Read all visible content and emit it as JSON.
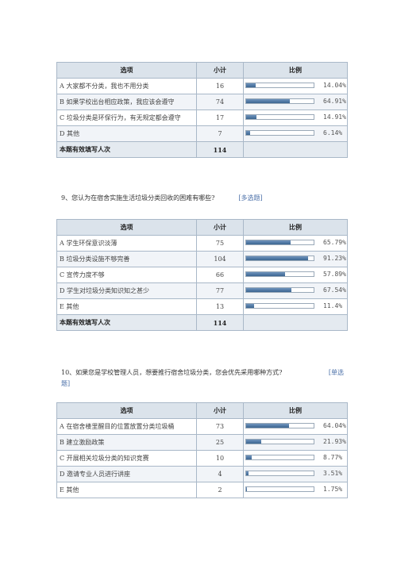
{
  "headers": {
    "option": "选项",
    "count": "小计",
    "ratio": "比例"
  },
  "total_label": "本题有效填写人次",
  "accent_color": "#3b6591",
  "tables": [
    {
      "rows": [
        {
          "option": "A 大家都不分类，我也不用分类",
          "count": "16",
          "percent": "14.04%",
          "fraction": 0.1404
        },
        {
          "option": "B 如果学校出台相应政策，我应该会遵守",
          "count": "74",
          "percent": "64.91%",
          "fraction": 0.6491
        },
        {
          "option": "C 垃圾分类是环保行为，有无规定都会遵守",
          "count": "17",
          "percent": "14.91%",
          "fraction": 0.1491
        },
        {
          "option": "D 其他",
          "count": "7",
          "percent": "6.14%",
          "fraction": 0.0614
        }
      ],
      "total": "114"
    },
    {
      "question": "9、您认为在宿舍实施生活垃圾分类回收的困难有哪些?",
      "tag": "[多选题]",
      "rows": [
        {
          "option": "A 学生环保意识淡薄",
          "count": "75",
          "percent": "65.79%",
          "fraction": 0.6579
        },
        {
          "option": "B 垃圾分类设施不够完善",
          "count": "104",
          "percent": "91.23%",
          "fraction": 0.9123
        },
        {
          "option": "C 宣传力度不够",
          "count": "66",
          "percent": "57.89%",
          "fraction": 0.5789
        },
        {
          "option": "D 学生对垃圾分类知识知之甚少",
          "count": "77",
          "percent": "67.54%",
          "fraction": 0.6754
        },
        {
          "option": "E 其他",
          "count": "13",
          "percent": "11.4%",
          "fraction": 0.114
        }
      ],
      "total": "114"
    },
    {
      "question_line1": "10、如果您是学校管理人员，想要推行宿舍垃圾分类，您会优先采用哪种方式?",
      "tag_line1": "[单选",
      "tag_line2": "题]",
      "rows": [
        {
          "option": "A 在宿舍楼里醒目的位置放置分类垃圾桶",
          "count": "73",
          "percent": "64.04%",
          "fraction": 0.6404
        },
        {
          "option": "B 建立激励政策",
          "count": "25",
          "percent": "21.93%",
          "fraction": 0.2193
        },
        {
          "option": "C 开展相关垃圾分类的知识竞赛",
          "count": "10",
          "percent": "8.77%",
          "fraction": 0.0877
        },
        {
          "option": "D 邀请专业人员进行讲座",
          "count": "4",
          "percent": "3.51%",
          "fraction": 0.0351
        },
        {
          "option": "E 其他",
          "count": "2",
          "percent": "1.75%",
          "fraction": 0.0175
        }
      ]
    }
  ]
}
